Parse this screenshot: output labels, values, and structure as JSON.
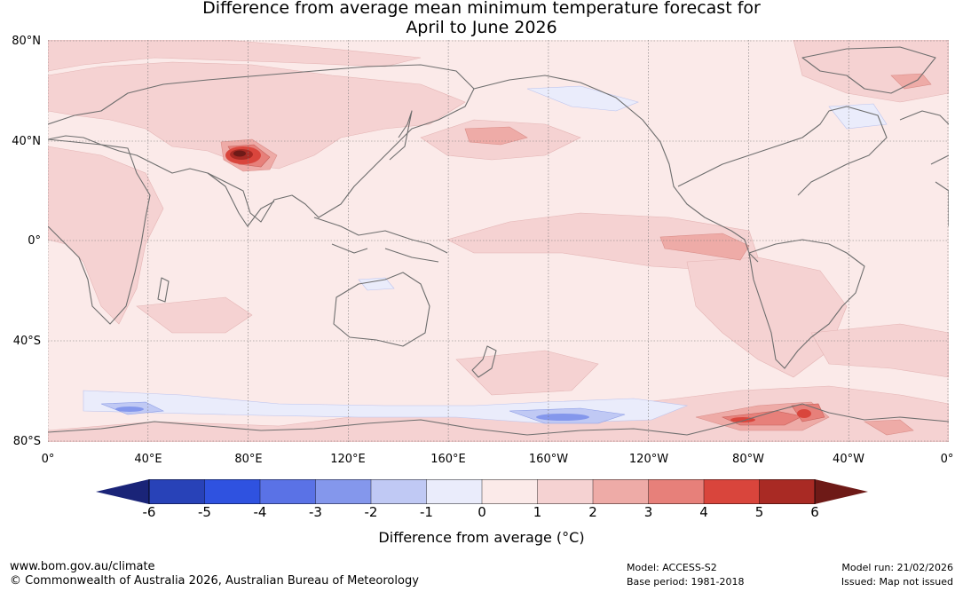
{
  "title": {
    "line1": "Difference from average mean minimum temperature forecast for",
    "line2": "April to June 2026"
  },
  "map": {
    "lat_ticks": [
      "80°N",
      "40°N",
      "0°",
      "40°S",
      "80°S"
    ],
    "lon_ticks": [
      "0°",
      "40°E",
      "80°E",
      "120°E",
      "160°E",
      "160°W",
      "120°W",
      "80°W",
      "40°W",
      "0°"
    ],
    "regions": [
      {
        "name": "hotspot-tibet",
        "level": 6,
        "lon": 78,
        "lat": 34
      },
      {
        "name": "anomaly-southern-ocean-east",
        "level": 3,
        "lon": -75,
        "lat": -70
      },
      {
        "name": "anomaly-southern-ocean-cold",
        "level": -2,
        "lon": -150,
        "lat": -70
      }
    ]
  },
  "colorbar": {
    "ticks": [
      "-6",
      "-5",
      "-4",
      "-3",
      "-2",
      "-1",
      "0",
      "1",
      "2",
      "3",
      "4",
      "5",
      "6"
    ],
    "colors": [
      "#1a2478",
      "#2842b8",
      "#2f52e0",
      "#5a72e6",
      "#8497ec",
      "#c0c9f4",
      "#eaecfb",
      "#fbeae9",
      "#f5d2d2",
      "#eeaba7",
      "#e7807a",
      "#d9453c",
      "#a92a24",
      "#6e1a17"
    ],
    "label": "Difference from average (°C)"
  },
  "footer": {
    "website": "www.bom.gov.au/climate",
    "copyright": "© Commonwealth of Australia 2026, Australian Bureau of Meteorology",
    "model": "Model: ACCESS-S2",
    "base_period": "Base period: 1981-2018",
    "model_run": "Model run: 21/02/2026",
    "issued": "Issued: Map not issued"
  }
}
